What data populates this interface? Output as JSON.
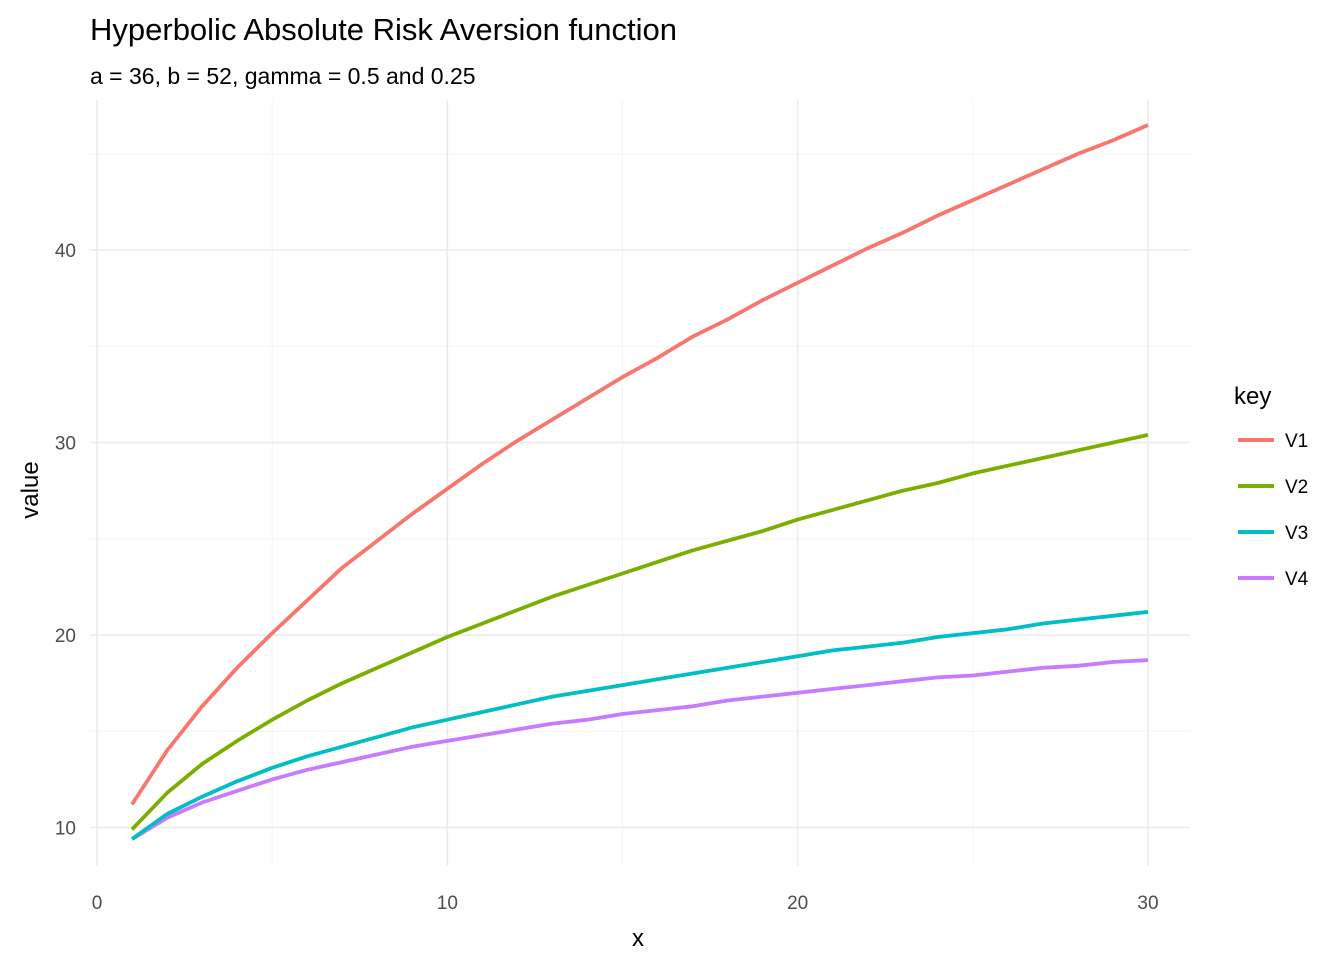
{
  "chart_data": {
    "type": "line",
    "title": "Hyperbolic Absolute Risk Aversion function",
    "subtitle": "a = 36, b = 52, gamma = 0.5 and 0.25",
    "xlabel": "x",
    "ylabel": "value",
    "xlim": [
      -0.2,
      31.2
    ],
    "ylim": [
      8.0,
      47.8
    ],
    "x_ticks": [
      0,
      10,
      20,
      30
    ],
    "y_ticks": [
      10,
      20,
      30,
      40
    ],
    "grid": true,
    "legend": {
      "title": "key",
      "position": "right"
    },
    "x": [
      1,
      2,
      3,
      4,
      5,
      6,
      7,
      8,
      9,
      10,
      11,
      12,
      13,
      14,
      15,
      16,
      17,
      18,
      19,
      20,
      21,
      22,
      23,
      24,
      25,
      26,
      27,
      28,
      29,
      30
    ],
    "series": [
      {
        "name": "V1",
        "color": "#F8766D",
        "values": [
          11.2,
          14.0,
          16.3,
          18.3,
          20.1,
          21.8,
          23.5,
          24.9,
          26.3,
          27.6,
          28.9,
          30.1,
          31.2,
          32.3,
          33.4,
          34.4,
          35.5,
          36.4,
          37.4,
          38.3,
          39.2,
          40.1,
          40.9,
          41.8,
          42.6,
          43.4,
          44.2,
          45.0,
          45.7,
          46.5
        ]
      },
      {
        "name": "V2",
        "color": "#7CAE00",
        "values": [
          9.9,
          11.8,
          13.3,
          14.5,
          15.6,
          16.6,
          17.5,
          18.3,
          19.1,
          19.9,
          20.6,
          21.3,
          22.0,
          22.6,
          23.2,
          23.8,
          24.4,
          24.9,
          25.4,
          26.0,
          26.5,
          27.0,
          27.5,
          27.9,
          28.4,
          28.8,
          29.2,
          29.6,
          30.0,
          30.4
        ]
      },
      {
        "name": "V3",
        "color": "#00BFC4",
        "values": [
          9.4,
          10.7,
          11.6,
          12.4,
          13.1,
          13.7,
          14.2,
          14.7,
          15.2,
          15.6,
          16.0,
          16.4,
          16.8,
          17.1,
          17.4,
          17.7,
          18.0,
          18.3,
          18.6,
          18.9,
          19.2,
          19.4,
          19.6,
          19.9,
          20.1,
          20.3,
          20.6,
          20.8,
          21.0,
          21.2
        ]
      },
      {
        "name": "V4",
        "color": "#C77CFF",
        "values": [
          9.4,
          10.5,
          11.3,
          11.9,
          12.5,
          13.0,
          13.4,
          13.8,
          14.2,
          14.5,
          14.8,
          15.1,
          15.4,
          15.6,
          15.9,
          16.1,
          16.3,
          16.6,
          16.8,
          17.0,
          17.2,
          17.4,
          17.6,
          17.8,
          17.9,
          18.1,
          18.3,
          18.4,
          18.6,
          18.7
        ]
      }
    ]
  }
}
